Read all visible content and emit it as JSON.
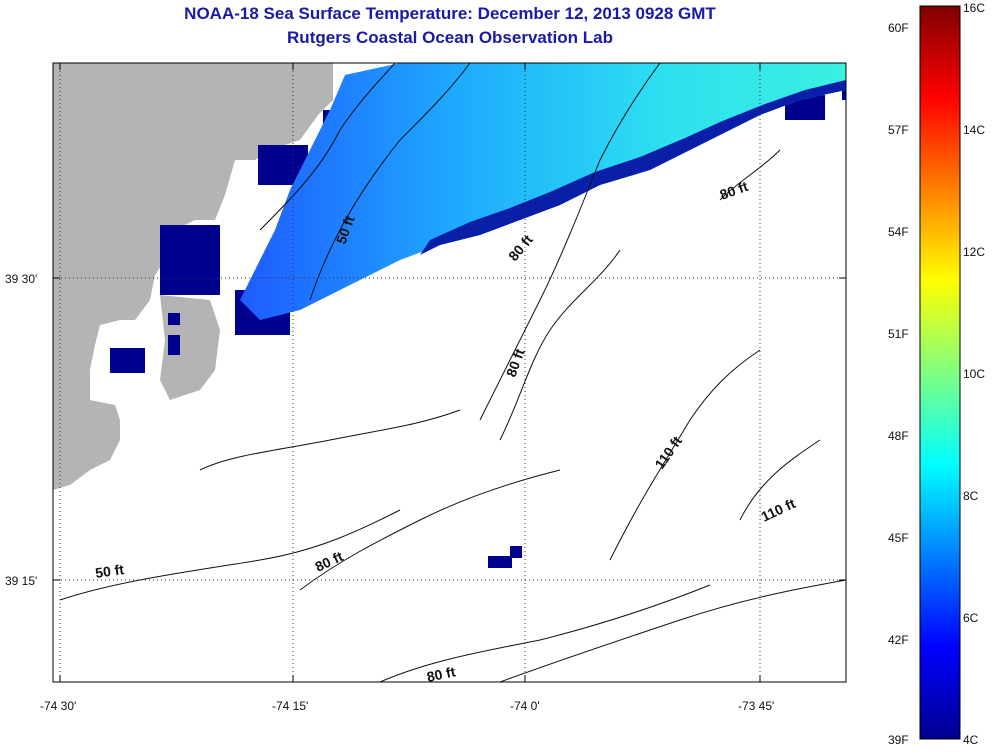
{
  "header": {
    "title": "NOAA-18 Sea Surface Temperature:  December 12, 2013 0928 GMT",
    "subtitle": "Rutgers Coastal Ocean Observation Lab"
  },
  "axes": {
    "x_ticks": [
      "-74 30'",
      "-74 15'",
      "-74 0'",
      "-73 45'"
    ],
    "y_ticks": [
      "39 30'",
      "39 15'"
    ]
  },
  "contours": [
    {
      "label": "50 ft"
    },
    {
      "label": "80 ft"
    },
    {
      "label": "80 ft"
    },
    {
      "label": "80 ft"
    },
    {
      "label": "110 ft"
    },
    {
      "label": "110 ft"
    },
    {
      "label": "50 ft"
    },
    {
      "label": "80 ft"
    },
    {
      "label": "80 ft"
    }
  ],
  "colorbar": {
    "fahrenheit_labels": [
      "60F",
      "57F",
      "54F",
      "51F",
      "48F",
      "45F",
      "42F",
      "39F"
    ],
    "celsius_labels": [
      "16C",
      "14C",
      "12C",
      "10C",
      "8C",
      "6C",
      "4C"
    ],
    "range_c": [
      4,
      16
    ]
  },
  "colors": {
    "land": "#b4b4b4",
    "cold": "#00008f",
    "warm": "#8f0000",
    "title": "#1a1aa6"
  }
}
